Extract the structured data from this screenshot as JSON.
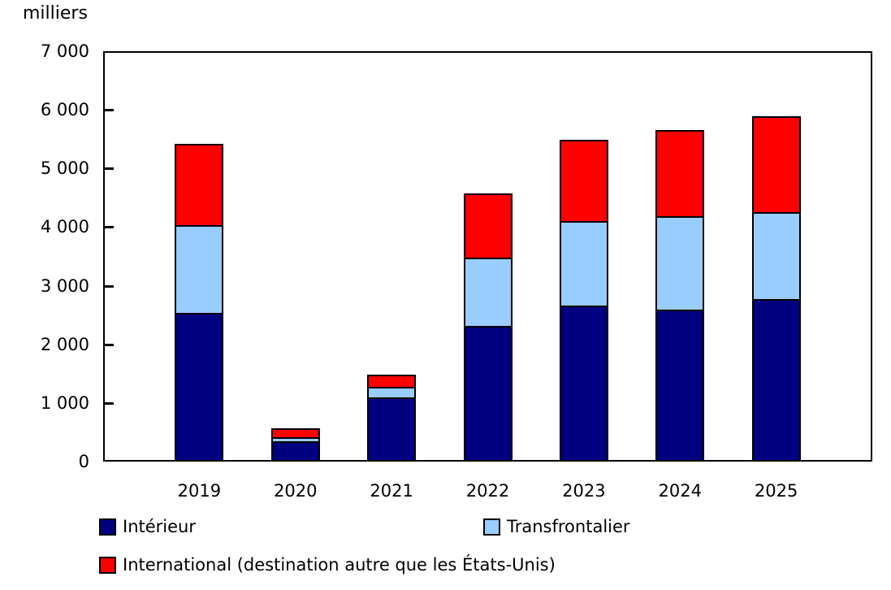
{
  "chart_data": {
    "type": "bar",
    "stacked": true,
    "title": "milliers",
    "categories": [
      "2019",
      "2020",
      "2021",
      "2022",
      "2023",
      "2024",
      "2025"
    ],
    "series": [
      {
        "name": "Intérieur",
        "color": "#000080",
        "values": [
          2530,
          340,
          1090,
          2310,
          2660,
          2590,
          2770
        ]
      },
      {
        "name": "Transfrontalier",
        "color": "#99CCFF",
        "values": [
          1500,
          80,
          180,
          1170,
          1440,
          1600,
          1490
        ]
      },
      {
        "name": "International (destination autre que les États-Unis)",
        "color": "#FF0000",
        "values": [
          1390,
          150,
          210,
          1090,
          1390,
          1470,
          1630
        ]
      }
    ],
    "ylim": [
      0,
      7000
    ],
    "ytick_values": [
      0,
      1000,
      2000,
      3000,
      4000,
      5000,
      6000,
      7000
    ],
    "ytick_labels": [
      "0",
      "1 000",
      "2 000",
      "3 000",
      "4 000",
      "5 000",
      "6 000",
      "7 000"
    ],
    "xlabel": "",
    "ylabel": "milliers",
    "grid": false,
    "frame": true,
    "legend_position": "bottom"
  }
}
